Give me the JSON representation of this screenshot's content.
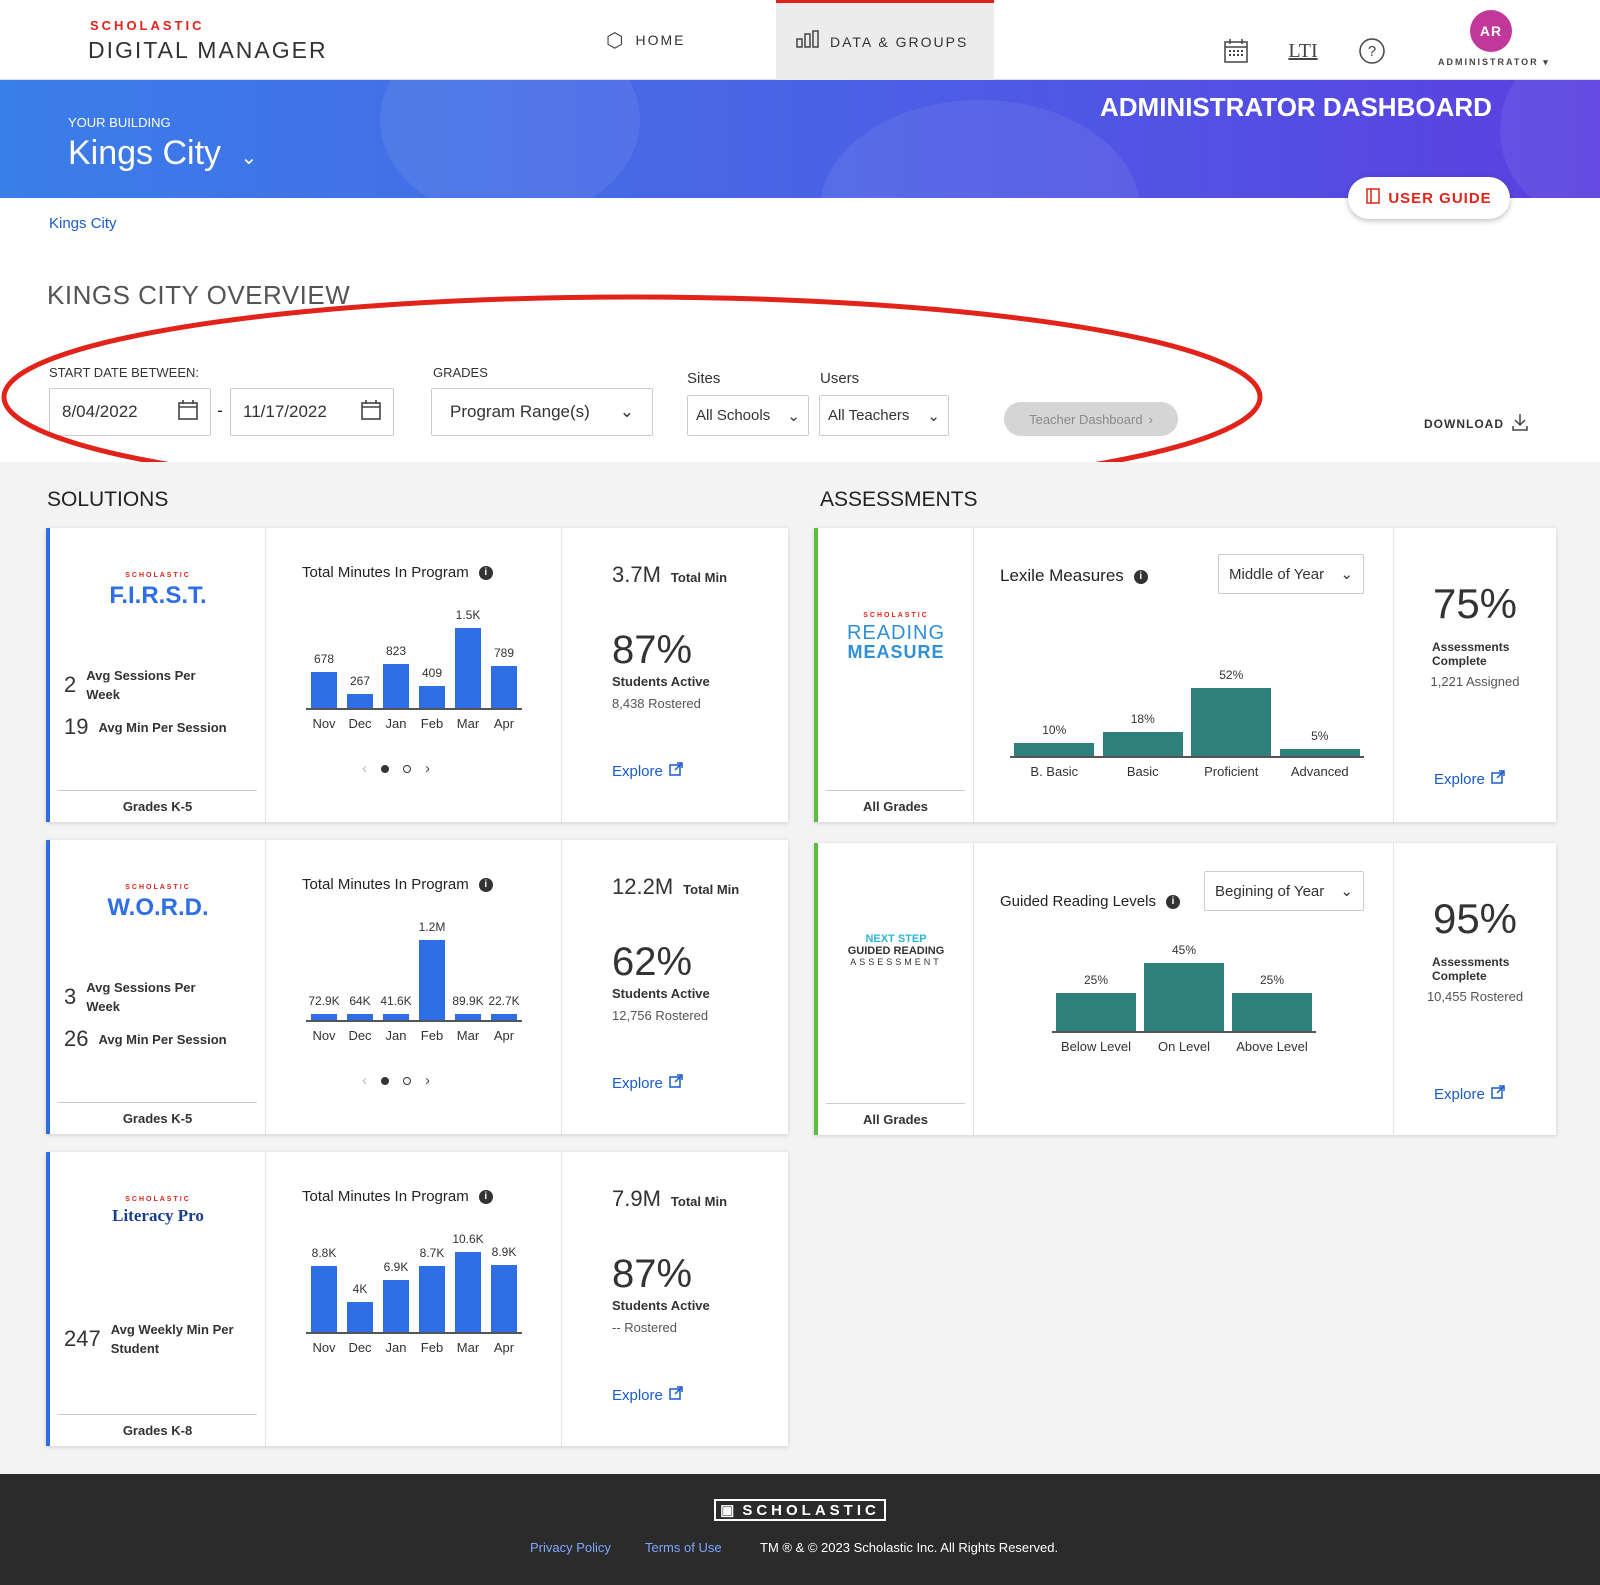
{
  "header": {
    "logo_top": "SCHOLASTIC",
    "logo_main": "DIGITAL MANAGER",
    "nav_home": "HOME",
    "nav_data": "DATA & GROUPS",
    "avatar_initials": "AR",
    "role": "ADMINISTRATOR",
    "lti": "LTI"
  },
  "banner": {
    "building_label": "YOUR BUILDING",
    "building_name": "Kings City",
    "dashboard_title": "ADMINISTRATOR DASHBOARD",
    "user_guide": "USER GUIDE"
  },
  "breadcrumb": "Kings City",
  "overview_title": "KINGS CITY OVERVIEW",
  "filters": {
    "start_label": "START DATE BETWEEN:",
    "date_from": "8/04/2022",
    "dash": "-",
    "date_to": "11/17/2022",
    "grades_label": "GRADES",
    "grades_value": "Program Range(s)",
    "sites_label": "Sites",
    "sites_value": "All Schools",
    "users_label": "Users",
    "users_value": "All Teachers",
    "teacher_dashboard": "Teacher Dashboard",
    "download": "DOWNLOAD"
  },
  "solutions_title": "SOLUTIONS",
  "assessments_title": "ASSESSMENTS",
  "solutions": [
    {
      "logo_top": "SCHOLASTIC",
      "logo": "F.I.R.S.T.",
      "logo_color": "#2f6fe6",
      "stats": [
        {
          "num": "2",
          "label1": "Avg Sessions Per",
          "label2": "Week"
        },
        {
          "num": "19",
          "label1": "Avg Min Per Session",
          "label2": ""
        }
      ],
      "grades": "Grades K-5",
      "chart_title": "Total Minutes In Program",
      "total": "3.7M",
      "total_label": "Total Min",
      "pct": "87%",
      "active_label": "Students Active",
      "rostered": "8,438 Rostered",
      "explore": "Explore",
      "pager": true
    },
    {
      "logo_top": "SCHOLASTIC",
      "logo": "W.O.R.D.",
      "logo_color": "#2f6fe6",
      "stats": [
        {
          "num": "3",
          "label1": "Avg Sessions Per",
          "label2": "Week"
        },
        {
          "num": "26",
          "label1": "Avg Min Per Session",
          "label2": ""
        }
      ],
      "grades": "Grades K-5",
      "chart_title": "Total Minutes In Program",
      "total": "12.2M",
      "total_label": "Total Min",
      "pct": "62%",
      "active_label": "Students Active",
      "rostered": "12,756 Rostered",
      "explore": "Explore",
      "pager": true
    },
    {
      "logo_top": "SCHOLASTIC",
      "logo": "Literacy Pro",
      "logo_color": "#1a3d8f",
      "stats": [
        {
          "num": "247",
          "label1": "Avg Weekly Min Per",
          "label2": "Student"
        }
      ],
      "grades": "Grades K-8",
      "chart_title": "Total Minutes In Program",
      "total": "7.9M",
      "total_label": "Total Min",
      "pct": "87%",
      "active_label": "Students Active",
      "rostered": "-- Rostered",
      "explore": "Explore",
      "pager": false
    }
  ],
  "assessments": [
    {
      "logo_top": "SCHOLASTIC",
      "logo1": "READING",
      "logo2": "MEASURE",
      "grades": "All Grades",
      "chart_title": "Lexile Measures",
      "dropdown": "Middle of Year",
      "pct": "75%",
      "complete1": "Assessments",
      "complete2": "Complete",
      "sub": "1,221 Assigned",
      "explore": "Explore"
    },
    {
      "logo_top": "NEXT STEP",
      "logo1": "GUIDED READING",
      "logo2": "ASSESSMENT",
      "grades": "All Grades",
      "chart_title": "Guided Reading Levels",
      "dropdown": "Begining of Year",
      "pct": "95%",
      "complete1": "Assessments",
      "complete2": "Complete",
      "sub": "10,455 Rostered",
      "explore": "Explore"
    }
  ],
  "chart_data": [
    {
      "type": "bar",
      "title": "Total Minutes In Program",
      "categories": [
        "Nov",
        "Dec",
        "Jan",
        "Feb",
        "Mar",
        "Apr"
      ],
      "values": [
        678,
        267,
        823,
        409,
        1500,
        789
      ],
      "labels": [
        "678",
        "267",
        "823",
        "409",
        "1.5K",
        "789"
      ],
      "color": "#2f6fe6"
    },
    {
      "type": "bar",
      "title": "Total Minutes In Program",
      "categories": [
        "Nov",
        "Dec",
        "Jan",
        "Feb",
        "Mar",
        "Apr"
      ],
      "values": [
        72900,
        64000,
        41600,
        1200000,
        89900,
        22700
      ],
      "labels": [
        "72.9K",
        "64K",
        "41.6K",
        "1.2M",
        "89.9K",
        "22.7K"
      ],
      "color": "#2f6fe6"
    },
    {
      "type": "bar",
      "title": "Total Minutes In Program",
      "categories": [
        "Nov",
        "Dec",
        "Jan",
        "Feb",
        "Mar",
        "Apr"
      ],
      "values": [
        8800,
        4000,
        6900,
        8700,
        10600,
        8900
      ],
      "labels": [
        "8.8K",
        "4K",
        "6.9K",
        "8.7K",
        "10.6K",
        "8.9K"
      ],
      "color": "#2f6fe6"
    },
    {
      "type": "bar",
      "title": "Lexile Measures",
      "categories": [
        "B. Basic",
        "Basic",
        "Proficient",
        "Advanced"
      ],
      "values": [
        10,
        18,
        52,
        5
      ],
      "labels": [
        "10%",
        "18%",
        "52%",
        "5%"
      ],
      "color": "#2f7f7b"
    },
    {
      "type": "bar",
      "title": "Guided Reading Levels",
      "categories": [
        "Below Level",
        "On Level",
        "Above Level"
      ],
      "values": [
        25,
        45,
        25
      ],
      "labels": [
        "25%",
        "45%",
        "25%"
      ],
      "color": "#2f7f7b"
    }
  ],
  "footer": {
    "logo": "SCHOLASTIC",
    "privacy": "Privacy Policy",
    "terms": "Terms of Use",
    "copyright": "TM ® & © 2023 Scholastic Inc. All Rights Reserved."
  }
}
